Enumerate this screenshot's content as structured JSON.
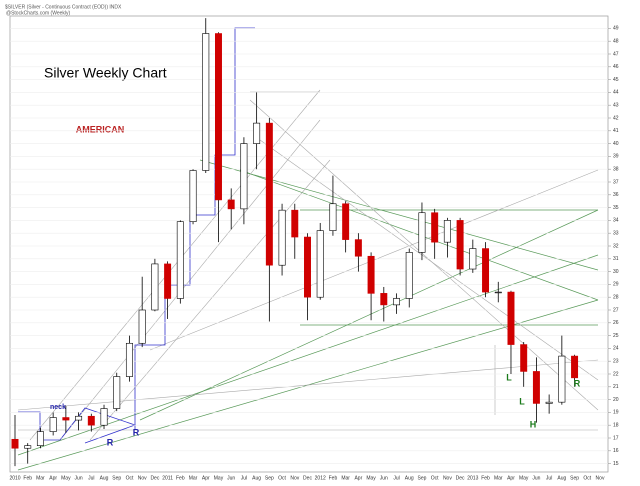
{
  "chart_data": {
    "type": "candlestick",
    "header": "$SILVER (Silver - Continuous Contract (EOD)) INDX",
    "subheader": "@StockCharts.com (Weekly)",
    "title": "Silver Weekly Chart",
    "logo": "AMERICAN",
    "categories": [
      "2010",
      "Feb",
      "Mar",
      "Apr",
      "May",
      "Jun",
      "Jul",
      "Aug",
      "Sep",
      "Oct",
      "Nov",
      "Dec",
      "2011",
      "Feb",
      "Mar",
      "Apr",
      "May",
      "Jun",
      "Jul",
      "Aug",
      "Sep",
      "Oct",
      "Nov",
      "Dec",
      "2012",
      "Feb",
      "Mar",
      "Apr",
      "May",
      "Jun",
      "Jul",
      "Aug",
      "Sep",
      "Oct",
      "Nov",
      "Dec",
      "2013",
      "Feb",
      "Mar",
      "Apr",
      "May",
      "Jun",
      "Jul",
      "Aug",
      "Sep",
      "Oct",
      "Nov"
    ],
    "open": [
      16.9,
      16.2,
      16.4,
      17.5,
      18.6,
      18.4,
      18.7,
      18.0,
      19.3,
      21.8,
      24.4,
      27.0,
      30.6,
      27.9,
      33.9,
      37.9,
      48.6,
      35.6,
      34.9,
      40.0,
      41.6,
      30.5,
      34.8,
      32.7,
      28.0,
      33.2,
      35.3,
      32.5,
      31.2,
      28.3,
      27.4,
      27.9,
      31.5,
      34.6,
      32.3,
      34.0,
      30.2,
      31.8,
      28.4,
      28.4,
      24.3,
      22.2,
      19.7,
      19.8,
      23.4,
      null,
      null
    ],
    "high": [
      18.8,
      16.6,
      17.8,
      19.0,
      19.5,
      19.0,
      18.9,
      19.6,
      22.1,
      25.0,
      29.6,
      31.0,
      30.8,
      34.0,
      38.0,
      49.8,
      48.7,
      36.5,
      40.5,
      44.0,
      42.0,
      35.3,
      35.3,
      33.0,
      33.8,
      37.5,
      35.5,
      33.0,
      31.5,
      28.8,
      28.3,
      31.8,
      35.4,
      34.9,
      34.2,
      34.2,
      32.5,
      32.3,
      29.2,
      28.5,
      24.5,
      23.3,
      20.4,
      25.0,
      23.5,
      null,
      null
    ],
    "low": [
      14.8,
      15.0,
      16.2,
      17.2,
      17.4,
      17.6,
      17.5,
      17.7,
      19.1,
      21.4,
      24.1,
      26.9,
      26.3,
      27.5,
      33.7,
      37.7,
      32.3,
      33.3,
      33.7,
      38.0,
      26.1,
      29.7,
      31.0,
      26.2,
      27.8,
      32.8,
      31.5,
      30.0,
      26.2,
      26.1,
      26.7,
      27.2,
      30.9,
      31.0,
      31.1,
      29.7,
      29.9,
      28.0,
      27.6,
      22.0,
      21.0,
      18.2,
      18.9,
      19.6,
      21.0,
      null,
      null
    ],
    "close": [
      16.2,
      16.4,
      17.5,
      18.6,
      18.4,
      18.7,
      18.0,
      19.3,
      21.8,
      24.4,
      27.0,
      30.6,
      27.9,
      33.9,
      37.9,
      48.6,
      35.6,
      34.9,
      40.0,
      41.6,
      30.5,
      34.8,
      32.7,
      28.0,
      33.2,
      35.3,
      32.5,
      31.2,
      28.3,
      27.4,
      27.9,
      31.5,
      34.6,
      32.3,
      34.0,
      30.2,
      31.8,
      28.4,
      28.4,
      24.3,
      22.2,
      19.7,
      19.8,
      23.4,
      21.7,
      null,
      null
    ],
    "up_color": "#ffffff",
    "down_color": "#d00000",
    "ylim": [
      14.5,
      49.5
    ],
    "yticks": [
      15,
      16,
      17,
      18,
      19,
      20,
      21,
      22,
      23,
      24,
      25,
      26,
      27,
      28,
      29,
      30,
      31,
      32,
      33,
      34,
      35,
      36,
      37,
      38,
      39,
      40,
      41,
      42,
      43,
      44,
      45,
      46,
      47,
      48,
      49
    ],
    "grid": true,
    "annotations": [
      {
        "text": "neck",
        "color": "#2222aa"
      },
      {
        "text": "R",
        "color": "#2222aa"
      },
      {
        "text": "R",
        "color": "#2222aa"
      },
      {
        "text": "L",
        "color": "#1a7a1a"
      },
      {
        "text": "L",
        "color": "#1a7a1a"
      },
      {
        "text": "H",
        "color": "#1a7a1a"
      },
      {
        "text": "R",
        "color": "#1a7a1a"
      }
    ]
  }
}
